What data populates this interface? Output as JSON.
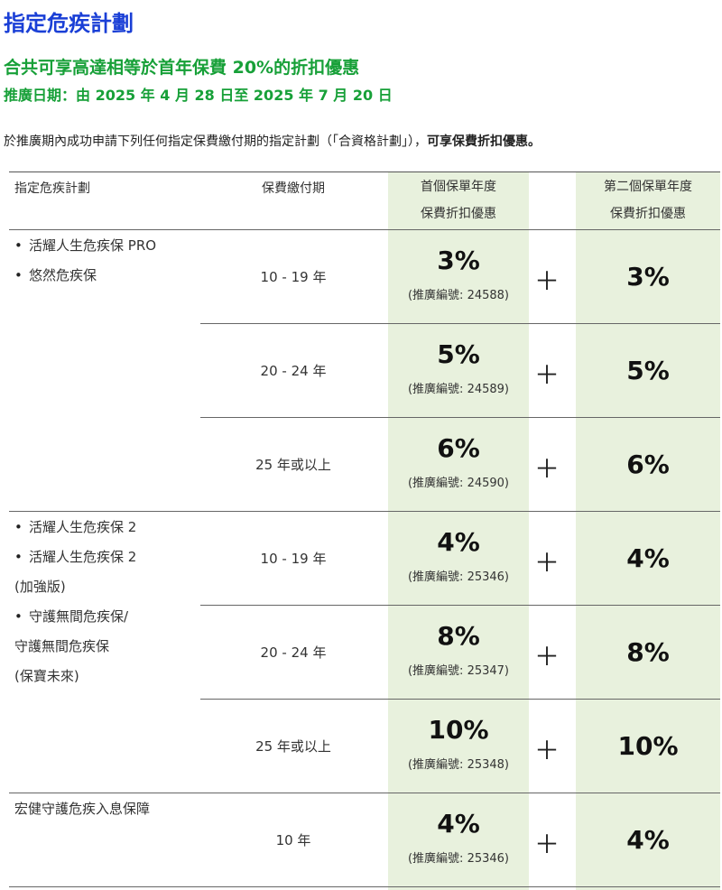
{
  "title": "指定危疾計劃",
  "subtitle": "合共可享高達相等於首年保費 20%的折扣優惠",
  "promo_period": "推廣日期：由 2025 年 4 月 28 日至 2025 年 7 月 20 日",
  "intro": {
    "text": "於推廣期內成功申請下列任何指定保費繳付期的指定計劃（「合資格計劃」），",
    "bold": "可享保費折扣優惠。"
  },
  "colors": {
    "title": "#1a3fd6",
    "subtitle": "#17a038",
    "discount_column_bg": "#e8f1dd"
  },
  "table": {
    "headers": {
      "plan": "指定危疾計劃",
      "term": "保費繳付期",
      "first_year_line1": "首個保單年度",
      "first_year_line2": "保費折扣優惠",
      "second_year_line1": "第二個保單年度",
      "second_year_line2": "保費折扣優惠"
    },
    "plus_sign": "＋",
    "groups": [
      {
        "plans": [
          {
            "text": "活耀人生危疾保 PRO",
            "bullet": true
          },
          {
            "text": "悠然危疾保",
            "bullet": true
          }
        ],
        "rows": [
          {
            "term": "10 - 19 年",
            "first": "3%",
            "code": "(推廣編號: 24588)",
            "second": "3%"
          },
          {
            "term": "20 - 24 年",
            "first": "5%",
            "code": "(推廣編號: 24589)",
            "second": "5%"
          },
          {
            "term": "25 年或以上",
            "first": "6%",
            "code": "(推廣編號: 24590)",
            "second": "6%"
          }
        ]
      },
      {
        "plans": [
          {
            "text": "活耀人生危疾保 2",
            "bullet": true
          },
          {
            "text": "活耀人生危疾保 2",
            "bullet": true
          },
          {
            "text": "(加強版)",
            "bullet": false
          },
          {
            "text": "守護無間危疾保/",
            "bullet": true
          },
          {
            "text": "守護無間危疾保",
            "bullet": false
          },
          {
            "text": "(保寶未來)",
            "bullet": false
          }
        ],
        "rows": [
          {
            "term": "10 - 19 年",
            "first": "4%",
            "code": "(推廣編號: 25346)",
            "second": "4%"
          },
          {
            "term": "20 - 24 年",
            "first": "8%",
            "code": "(推廣編號: 25347)",
            "second": "8%"
          },
          {
            "term": "25 年或以上",
            "first": "10%",
            "code": "(推廣編號: 25348)",
            "second": "10%"
          }
        ]
      },
      {
        "plans": [
          {
            "text": "宏健守護危疾入息保障",
            "bullet": false
          }
        ],
        "rows": [
          {
            "term": "10 年",
            "first": "4%",
            "code": "(推廣編號: 25346)",
            "second": "4%"
          }
        ]
      }
    ]
  }
}
